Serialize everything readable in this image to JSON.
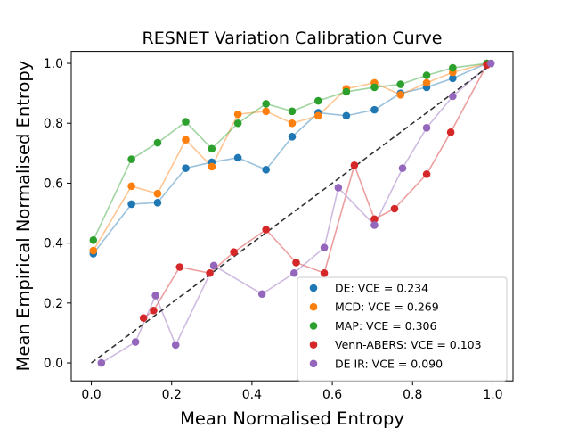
{
  "chart_data": {
    "type": "scatter",
    "title": "RESNET Variation Calibration Curve",
    "xlabel": "Mean Normalised Entropy",
    "ylabel": "Mean Empirical Normalised Entropy",
    "xlim": [
      -0.05,
      1.05
    ],
    "ylim": [
      -0.06,
      1.04
    ],
    "xticks": [
      "0.0",
      "0.2",
      "0.4",
      "0.6",
      "0.8",
      "1.0"
    ],
    "yticks": [
      "0.0",
      "0.2",
      "0.4",
      "0.6",
      "0.8",
      "1.0"
    ],
    "grid": false,
    "legend_position": "lower-right",
    "reference_line": {
      "style": "dashed",
      "color": "#333333",
      "x": [
        0,
        1
      ],
      "y": [
        0,
        1
      ]
    },
    "series": [
      {
        "name": "DE",
        "legend_label": "DE: VCE = 0.234",
        "color": "#1f77b4",
        "x": [
          0.005,
          0.1,
          0.165,
          0.235,
          0.3,
          0.365,
          0.435,
          0.5,
          0.565,
          0.635,
          0.705,
          0.77,
          0.835,
          0.9,
          0.985
        ],
        "y": [
          0.365,
          0.53,
          0.535,
          0.65,
          0.67,
          0.685,
          0.645,
          0.755,
          0.835,
          0.825,
          0.845,
          0.9,
          0.92,
          0.95,
          1.0
        ]
      },
      {
        "name": "MCD",
        "legend_label": "MCD: VCE =  0.269",
        "color": "#ff7f0e",
        "x": [
          0.005,
          0.1,
          0.165,
          0.235,
          0.3,
          0.365,
          0.435,
          0.5,
          0.565,
          0.635,
          0.705,
          0.77,
          0.835,
          0.9,
          0.985
        ],
        "y": [
          0.375,
          0.59,
          0.565,
          0.745,
          0.655,
          0.83,
          0.84,
          0.8,
          0.825,
          0.915,
          0.935,
          0.895,
          0.935,
          0.97,
          1.0
        ]
      },
      {
        "name": "MAP",
        "legend_label": "MAP: VCE =  0.306",
        "color": "#2ca02c",
        "x": [
          0.005,
          0.1,
          0.165,
          0.235,
          0.3,
          0.365,
          0.435,
          0.5,
          0.565,
          0.635,
          0.705,
          0.77,
          0.835,
          0.9,
          0.985
        ],
        "y": [
          0.41,
          0.68,
          0.735,
          0.805,
          0.715,
          0.8,
          0.865,
          0.84,
          0.875,
          0.905,
          0.92,
          0.93,
          0.96,
          0.985,
          1.0
        ]
      },
      {
        "name": "Venn-ABERS",
        "legend_label": "Venn-ABERS: VCE =  0.103",
        "color": "#d62728",
        "x": [
          0.13,
          0.155,
          0.22,
          0.295,
          0.355,
          0.435,
          0.51,
          0.58,
          0.655,
          0.705,
          0.755,
          0.835,
          0.895,
          0.985
        ],
        "y": [
          0.15,
          0.175,
          0.32,
          0.3,
          0.37,
          0.445,
          0.335,
          0.3,
          0.66,
          0.48,
          0.515,
          0.63,
          0.77,
          0.995
        ]
      },
      {
        "name": "DE IR",
        "legend_label": "DE IR: VCE = 0.090",
        "color": "#9467bd",
        "x": [
          0.025,
          0.11,
          0.16,
          0.21,
          0.305,
          0.425,
          0.505,
          0.58,
          0.615,
          0.705,
          0.775,
          0.835,
          0.9,
          0.995
        ],
        "y": [
          0.0,
          0.07,
          0.225,
          0.06,
          0.325,
          0.23,
          0.3,
          0.385,
          0.585,
          0.46,
          0.65,
          0.785,
          0.89,
          1.0
        ]
      }
    ]
  }
}
